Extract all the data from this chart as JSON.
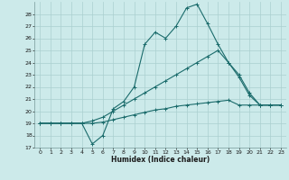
{
  "xlabel": "Humidex (Indice chaleur)",
  "bg_color": "#cceaea",
  "grid_color": "#aacfcf",
  "line_color": "#1a6b6b",
  "xlim": [
    -0.5,
    23.5
  ],
  "ylim": [
    17,
    29
  ],
  "yticks": [
    17,
    18,
    19,
    20,
    21,
    22,
    23,
    24,
    25,
    26,
    27,
    28
  ],
  "xticks": [
    0,
    1,
    2,
    3,
    4,
    5,
    6,
    7,
    8,
    9,
    10,
    11,
    12,
    13,
    14,
    15,
    16,
    17,
    18,
    19,
    20,
    21,
    22,
    23
  ],
  "series": [
    [
      19,
      19,
      19,
      19,
      19,
      17.3,
      18.0,
      20.2,
      20.8,
      22.0,
      25.5,
      26.5,
      26.0,
      27.0,
      28.5,
      28.8,
      27.2,
      25.5,
      24.0,
      22.8,
      21.3,
      20.5,
      20.5,
      20.5
    ],
    [
      19,
      19,
      19,
      19,
      19,
      19.0,
      19.1,
      19.3,
      19.5,
      19.7,
      19.9,
      20.1,
      20.2,
      20.4,
      20.5,
      20.6,
      20.7,
      20.8,
      20.9,
      20.5,
      20.5,
      20.5,
      20.5,
      20.5
    ],
    [
      19,
      19,
      19,
      19,
      19,
      19.2,
      19.5,
      20.0,
      20.5,
      21.0,
      21.5,
      22.0,
      22.5,
      23.0,
      23.5,
      24.0,
      24.5,
      25.0,
      24.0,
      23.0,
      21.5,
      20.5,
      20.5,
      20.5
    ]
  ]
}
